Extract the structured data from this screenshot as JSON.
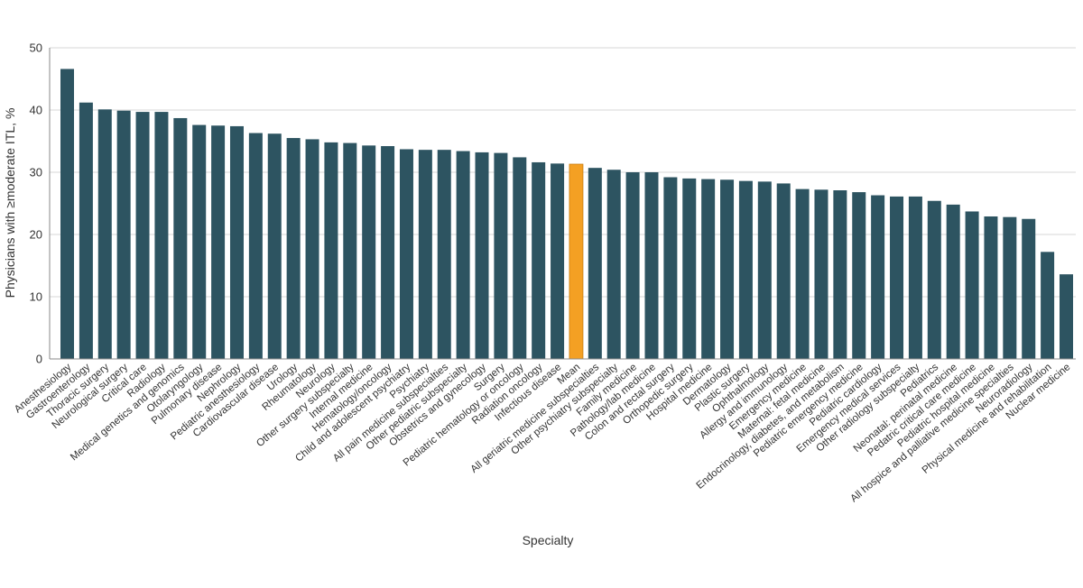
{
  "chart_data": {
    "type": "bar",
    "title": "",
    "xlabel": "Specialty",
    "ylabel": "Physicians with ≥moderate ITL, %",
    "ylim": [
      0,
      50
    ],
    "yticks": [
      0,
      10,
      20,
      30,
      40,
      50
    ],
    "grid": true,
    "colors": {
      "bar": "#2d5461",
      "highlight": "#f4a023",
      "grid": "#d7d7d7",
      "axis": "#8a8a8a"
    },
    "highlight_category": "Mean",
    "categories": [
      "Anesthesiology",
      "Gastroenterology",
      "Thoracic surgery",
      "Neurological surgery",
      "Critical care",
      "Radiology",
      "Medical genetics and genomics",
      "Otolaryngology",
      "Pulmonary disease",
      "Nephrology",
      "Pediatric anesthesiology",
      "Cardiovascular disease",
      "Urology",
      "Rheumatology",
      "Neurology",
      "Other surgery subspecialty",
      "Internal medicine",
      "Hematology/oncology",
      "Child and adolescent psychiatry",
      "Psychiatry",
      "All pain medicine subspecialties",
      "Other pediatric subspecialty",
      "Obstetrics and gynecology",
      "Surgery",
      "Pediatric hematology or oncology",
      "Radiation oncology",
      "Infectious disease",
      "Mean",
      "All geriatric medicine subspecialties",
      "Other psychiatry subspecialty",
      "Family medicine",
      "Pathology/lab medicine",
      "Colon and rectal surgery",
      "Orthopedic surgery",
      "Hospital medicine",
      "Dermatology",
      "Plastic surgery",
      "Ophthalmology",
      "Allergy and immunology",
      "Emergency medicine",
      "Maternal: fetal medicine",
      "Endocrinology, diabetes, and metabolism",
      "Pediatric emergency medicine",
      "Pediatric cardiology",
      "Emergency medical services",
      "Other radiology subspecialty",
      "Pediatrics",
      "Neonatal: perinatal medicine",
      "Pedatric critical care medicine",
      "Pediatric hospital medicine",
      "All hospice and palliative medicine specialties",
      "Neuroradiology",
      "Physical medicine and rehabilitation",
      "Nuclear medicine"
    ],
    "values": [
      46.6,
      41.2,
      40.1,
      39.9,
      39.7,
      39.7,
      38.7,
      37.6,
      37.5,
      37.4,
      36.3,
      36.2,
      35.5,
      35.3,
      34.8,
      34.7,
      34.3,
      34.2,
      33.7,
      33.6,
      33.6,
      33.4,
      33.2,
      33.1,
      32.4,
      31.6,
      31.4,
      31.3,
      30.7,
      30.4,
      30.0,
      30.0,
      29.2,
      29.0,
      28.9,
      28.8,
      28.6,
      28.5,
      28.2,
      27.3,
      27.2,
      27.1,
      26.8,
      26.3,
      26.1,
      26.1,
      25.4,
      24.8,
      23.7,
      22.9,
      22.8,
      22.5,
      17.2,
      13.6
    ]
  }
}
